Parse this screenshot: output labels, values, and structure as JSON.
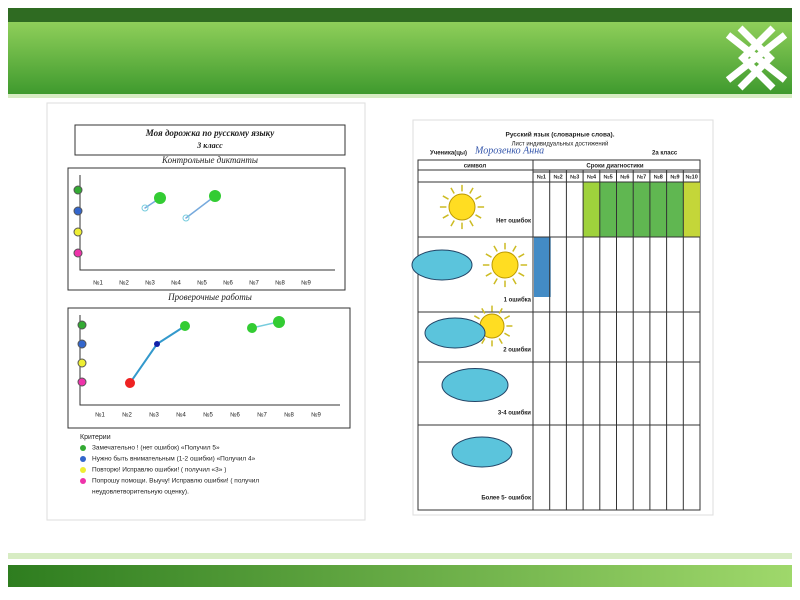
{
  "left_sheet": {
    "title": "Моя дорожка по русскому языку",
    "grade": "3 класс",
    "section1": {
      "title": "Контрольные диктанты",
      "labels": [
        "№1",
        "№2",
        "№3",
        "№4",
        "№5",
        "№6",
        "№7",
        "№8",
        "№9"
      ]
    },
    "section2": {
      "title": "Проверочные работы",
      "labels": [
        "№1",
        "№2",
        "№3",
        "№4",
        "№5",
        "№6",
        "№7",
        "№8",
        "№9"
      ]
    },
    "criteria": {
      "title": "Критерии",
      "items": [
        "Замечательно ! (нет ошибок) «Получил 5»",
        "Нужно быть внимательным (1-2 ошибки) «Получил 4»",
        "Повторю! Исправлю ошибки! ( получил «3» )",
        "Попрошу помощи. Выучу! Исправлю ошибки! ( получил",
        "неудовлетворительную оценку)."
      ]
    }
  },
  "right_sheet": {
    "title": "Русский язык (словарные слова).",
    "subtitle": "Лист индивидуальных достижений",
    "student_label": "Ученика(цы)",
    "student_name": "Морозенко Анна",
    "class": "2а класс",
    "table": {
      "symbol_header": "символ",
      "dates_header": "Сроки диагностики",
      "columns": [
        "№1",
        "№2",
        "№3",
        "№4",
        "№5",
        "№6",
        "№7",
        "№8",
        "№9",
        "№10"
      ],
      "rows": [
        "Нет ошибок",
        "1 ошибка",
        "2 ошибки",
        "3-4 ошибки",
        "Более 5- ошибок"
      ]
    }
  }
}
